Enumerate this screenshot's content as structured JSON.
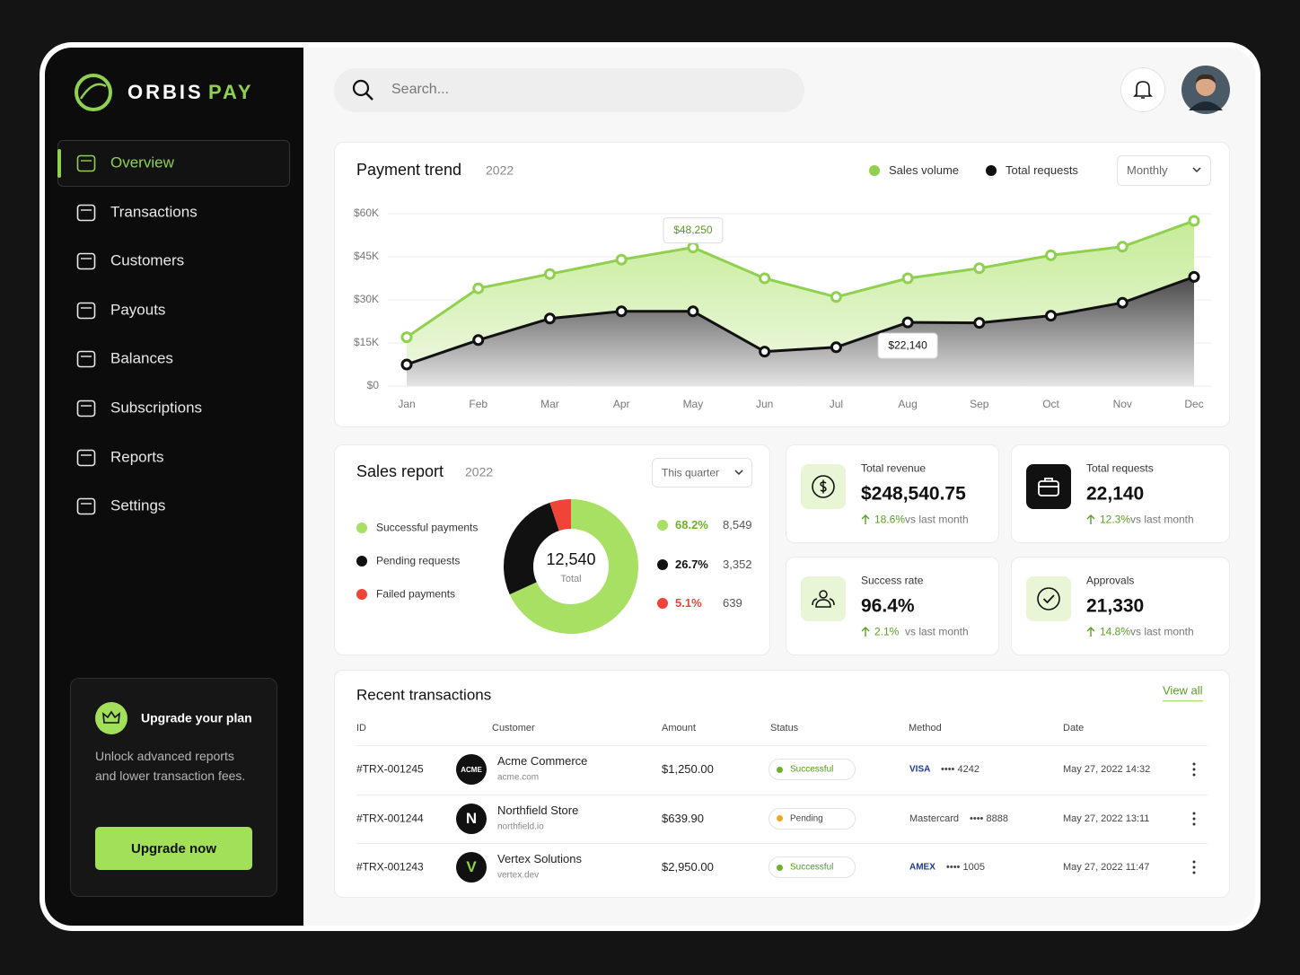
{
  "brand": {
    "name_a": "ORBIS",
    "name_b": "PAY"
  },
  "search_placeholder": "Search...",
  "nav": [
    "Overview",
    "Transactions",
    "Customers",
    "Payouts",
    "Balances",
    "Subscriptions",
    "Reports",
    "Settings"
  ],
  "upgrade": {
    "title": "Upgrade your plan",
    "text": "Unlock advanced reports and lower transaction fees.",
    "button": "Upgrade now"
  },
  "chart_data": [
    {
      "type": "line",
      "title": "Payment trend",
      "subtitle": "2022",
      "filter": "Monthly",
      "categories": [
        "Jan",
        "Feb",
        "Mar",
        "Apr",
        "May",
        "Jun",
        "Jul",
        "Aug",
        "Sep",
        "Oct",
        "Nov",
        "Dec"
      ],
      "series": [
        {
          "name": "Sales volume",
          "color": "#8fd14f",
          "values": [
            17000,
            34000,
            39000,
            44000,
            48250,
            37500,
            31000,
            37500,
            41000,
            45500,
            48500,
            57500
          ],
          "value_labels": [
            null,
            null,
            null,
            null,
            "$48,250",
            null,
            null,
            null,
            null,
            null,
            null,
            null
          ]
        },
        {
          "name": "Total requests",
          "color": "#111111",
          "values": [
            7500,
            16000,
            23500,
            26000,
            26000,
            12000,
            13500,
            22140,
            22000,
            24500,
            29000,
            38000
          ],
          "value_labels": [
            null,
            null,
            null,
            null,
            null,
            null,
            null,
            "$22,140",
            null,
            null,
            null,
            null
          ]
        }
      ],
      "ylim": [
        0,
        60000
      ],
      "yticks": [
        {
          "value": 0,
          "label": "$0"
        },
        {
          "value": 15000,
          "label": "$15K"
        },
        {
          "value": 30000,
          "label": "$30K"
        },
        {
          "value": 45000,
          "label": "$45K"
        },
        {
          "value": 60000,
          "label": "$60K"
        }
      ],
      "grid": true
    },
    {
      "type": "pie",
      "title": "Sales report",
      "subtitle": "2022",
      "filter": "This quarter",
      "categories": [
        "Successful payments",
        "Pending requests",
        "Failed payments"
      ],
      "values": [
        68.2,
        26.7,
        5.1
      ],
      "value_labels": [
        "68.2%",
        "26.7%",
        "5.1%"
      ],
      "colors": [
        "#a8e063",
        "#111111",
        "#f04438"
      ],
      "counts": [
        "8,549",
        "3,352",
        "639"
      ],
      "center_value": "12,540",
      "center_label": "Total"
    }
  ],
  "kpis": [
    {
      "label": "Total revenue",
      "value": "$248,540.75",
      "change": "18.6%",
      "note": "vs last month"
    },
    {
      "label": "Total requests",
      "value": "22,140",
      "change": "12.3%",
      "note": "vs last month"
    },
    {
      "label": "Success rate",
      "value": "96.4%",
      "change": "2.1%",
      "note": "vs last month"
    },
    {
      "label": "Approvals",
      "value": "21,330",
      "change": "14.8%",
      "note": "vs last month"
    }
  ],
  "transactions": {
    "title": "Recent transactions",
    "link": "View all",
    "columns": [
      "ID",
      "Customer",
      "Amount",
      "Status",
      "Method",
      "Date"
    ],
    "rows": [
      {
        "id": "#TRX-001245",
        "avatar": "ACME",
        "customer": "Acme Commerce",
        "domain": "acme.com",
        "amount": "$1,250.00",
        "status": "Successful",
        "method_brand": "VISA",
        "method_card": "•••• 4242",
        "date": "May 27, 2022 14:32"
      },
      {
        "id": "#TRX-001244",
        "avatar": "N",
        "customer": "Northfield Store",
        "domain": "northfield.io",
        "amount": "$639.90",
        "status": "Pending",
        "method_brand": "Mastercard",
        "method_card": "•••• 8888",
        "date": "May 27, 2022 13:11"
      },
      {
        "id": "#TRX-001243",
        "avatar": "V",
        "customer": "Vertex Solutions",
        "domain": "vertex.dev",
        "amount": "$2,950.00",
        "status": "Successful",
        "method_brand": "AMEX",
        "method_card": "•••• 1005",
        "date": "May 27, 2022 11:47"
      }
    ]
  }
}
